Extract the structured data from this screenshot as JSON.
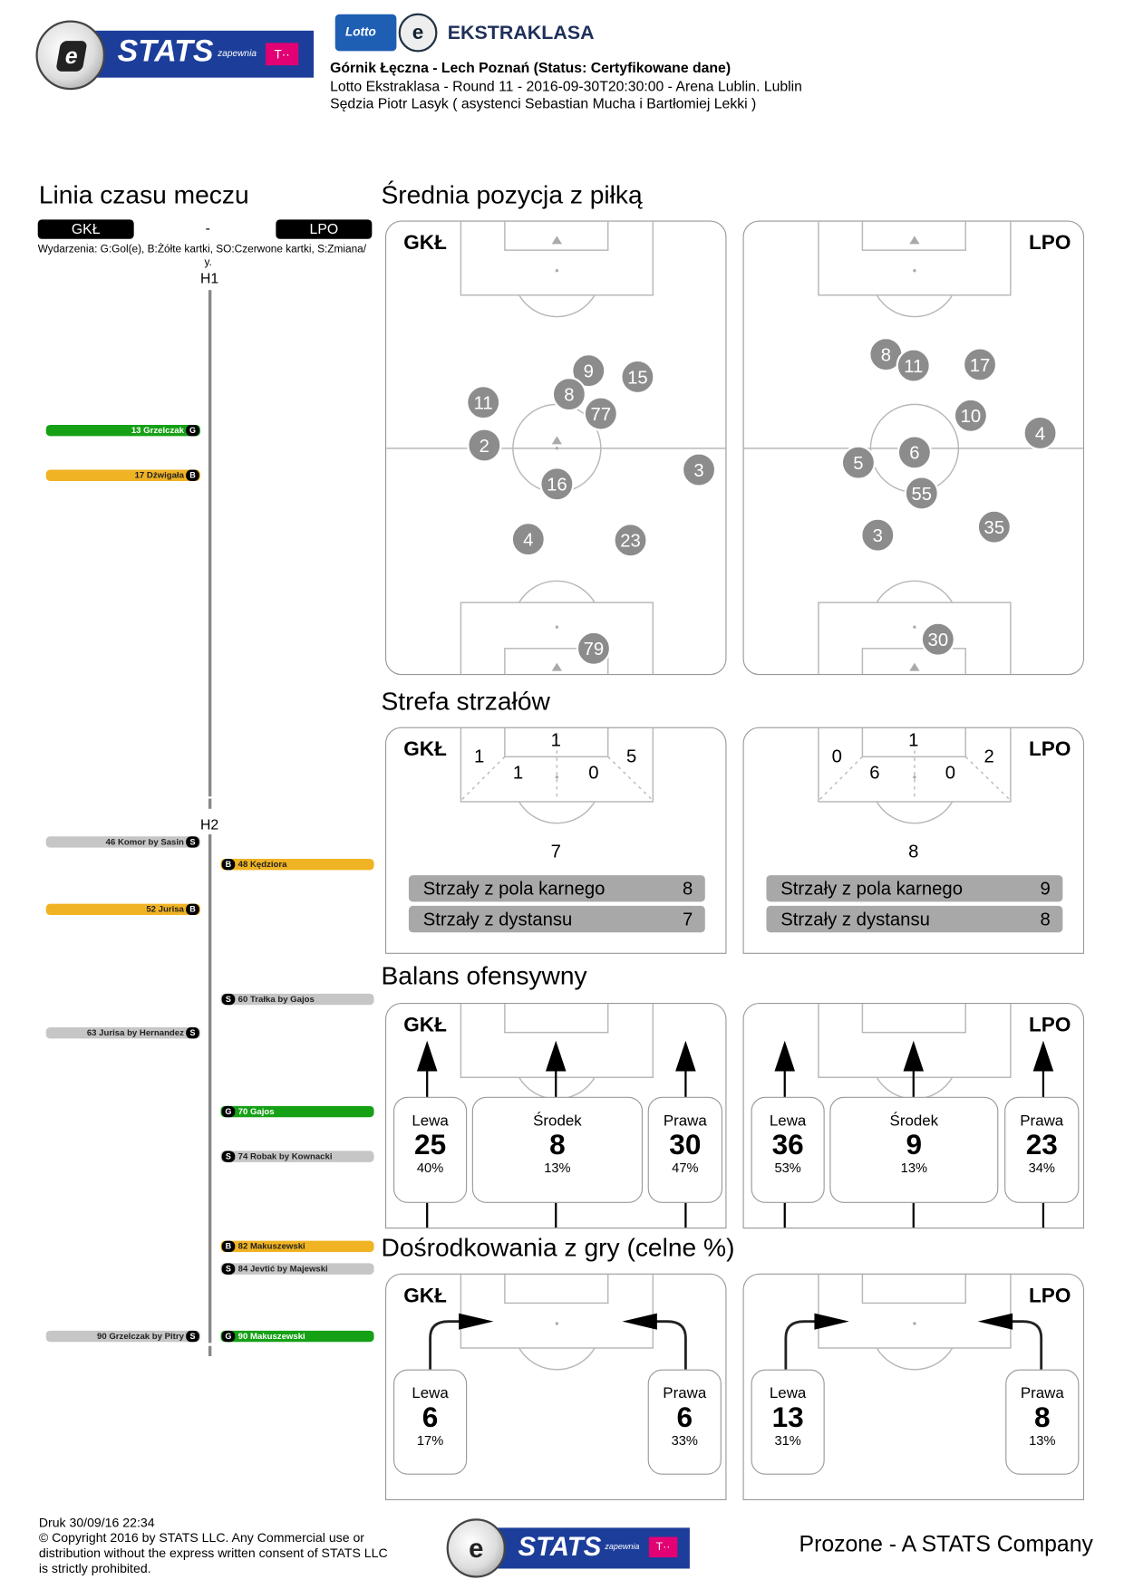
{
  "header": {
    "stats_logo": {
      "word": "STATS",
      "sub": "zapewnia",
      "tm": "T··"
    },
    "league_logo": {
      "lotto": "Lotto",
      "word": "EKSTRAKLASA"
    },
    "match_line": "Górnik Łęczna - Lech Poznań (Status: Certyfikowane dane)",
    "info_line": "Lotto Ekstraklasa - Round 11 - 2016-09-30T20:30:00 - Arena Lublin. Lublin",
    "referee_line": "Sędzia Piotr Lasyk ( asystenci Sebastian Mucha i Bartłomiej Lekki )"
  },
  "teams": {
    "home": "GKŁ",
    "away": "LPO",
    "separator": "-"
  },
  "timeline": {
    "title": "Linia czasu meczu",
    "legend": "Wydarzenia: G:Gol(e), B:Żółte kartki, SO:Czerwone kartki, S:Zmiana/",
    "legend_cont": "y.",
    "h1": "H1",
    "h2": "H2",
    "colors": {
      "G": "#16a016",
      "B": "#f0b323",
      "S": "#c6c6c6"
    },
    "events": [
      {
        "minute": 13,
        "side": "home",
        "type": "G",
        "text": "13 Grzelczak"
      },
      {
        "minute": 17,
        "side": "home",
        "type": "B",
        "text": "17 Dźwigała"
      },
      {
        "minute": 46,
        "side": "home",
        "type": "S",
        "text": "46 Komor by Sasin"
      },
      {
        "minute": 48,
        "side": "away",
        "type": "B",
        "text": "48 Kędziora"
      },
      {
        "minute": 52,
        "side": "home",
        "type": "B",
        "text": "52 Jurisa"
      },
      {
        "minute": 60,
        "side": "away",
        "type": "S",
        "text": "60 Trałka by Gajos"
      },
      {
        "minute": 63,
        "side": "home",
        "type": "S",
        "text": "63 Jurisa by Hernandez"
      },
      {
        "minute": 70,
        "side": "away",
        "type": "G",
        "text": "70 Gajos"
      },
      {
        "minute": 74,
        "side": "away",
        "type": "S",
        "text": "74 Robak by Kownacki"
      },
      {
        "minute": 82,
        "side": "away",
        "type": "B",
        "text": "82 Makuszewski"
      },
      {
        "minute": 84,
        "side": "away",
        "type": "S",
        "text": "84 Jevtić by Majewski"
      },
      {
        "minute": 90,
        "side": "home",
        "type": "S",
        "text": "90 Grzelczak by Pitry"
      },
      {
        "minute": 90,
        "side": "away",
        "type": "G",
        "text": "90 Makuszewski"
      }
    ]
  },
  "avg_position": {
    "title": "Średnia pozycja z piłką",
    "home_players": [
      "9",
      "15",
      "8",
      "11",
      "77",
      "2",
      "16",
      "3",
      "4",
      "23",
      "79"
    ],
    "away_players": [
      "8",
      "11",
      "17",
      "10",
      "4",
      "5",
      "6",
      "55",
      "3",
      "35",
      "30"
    ]
  },
  "shot_zones": {
    "title": "Strefa strzałów",
    "home": {
      "goal": "1",
      "left_wide": "1",
      "right_wide": "5",
      "left_box": "1",
      "right_box": "0",
      "outside": "7",
      "bars": [
        {
          "label": "Strzały z pola karnego",
          "value": "8"
        },
        {
          "label": "Strzały z dystansu",
          "value": "7"
        }
      ]
    },
    "away": {
      "goal": "1",
      "left_wide": "0",
      "right_wide": "2",
      "left_box": "6",
      "right_box": "0",
      "outside": "8",
      "bars": [
        {
          "label": "Strzały z pola karnego",
          "value": "9"
        },
        {
          "label": "Strzały z dystansu",
          "value": "8"
        }
      ]
    }
  },
  "attack_balance": {
    "title": "Balans ofensywny",
    "home": [
      {
        "label": "Lewa",
        "value": "25",
        "pct": "40%"
      },
      {
        "label": "Środek",
        "value": "8",
        "pct": "13%"
      },
      {
        "label": "Prawa",
        "value": "30",
        "pct": "47%"
      }
    ],
    "away": [
      {
        "label": "Lewa",
        "value": "36",
        "pct": "53%"
      },
      {
        "label": "Środek",
        "value": "9",
        "pct": "13%"
      },
      {
        "label": "Prawa",
        "value": "23",
        "pct": "34%"
      }
    ]
  },
  "crosses": {
    "title": "Dośrodkowania z gry (celne %)",
    "home": [
      {
        "label": "Lewa",
        "value": "6",
        "pct": "17%"
      },
      {
        "label": "Prawa",
        "value": "6",
        "pct": "33%"
      }
    ],
    "away": [
      {
        "label": "Lewa",
        "value": "13",
        "pct": "31%"
      },
      {
        "label": "Prawa",
        "value": "8",
        "pct": "13%"
      }
    ]
  },
  "footer": {
    "print": "Druk 30/09/16 22:34",
    "copyright": [
      "© Copyright 2016 by STATS LLC. Any Commercial use or",
      "distribution without the express written consent of STATS LLC",
      "is strictly prohibited."
    ],
    "company": "Prozone - A STATS Company"
  }
}
